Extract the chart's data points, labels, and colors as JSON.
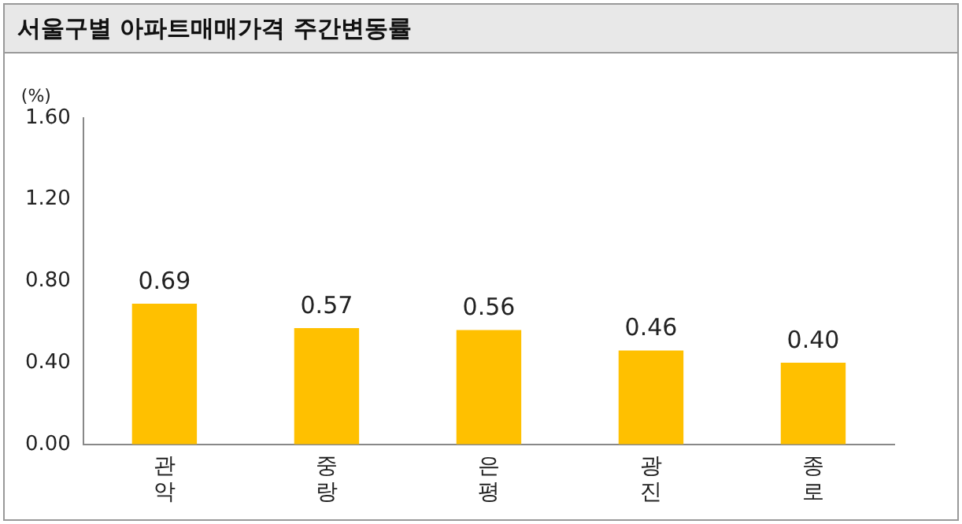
{
  "chart_data": {
    "type": "bar",
    "title": "서울구별 아파트매매가격 주간변동률",
    "ylabel": "(%)",
    "categories": [
      "관악",
      "중랑",
      "은평",
      "광진",
      "종로"
    ],
    "values": [
      0.69,
      0.57,
      0.56,
      0.46,
      0.4
    ],
    "value_labels": [
      "0.69",
      "0.57",
      "0.56",
      "0.46",
      "0.40"
    ],
    "color": "#ffc000",
    "ylim": [
      0,
      1.6
    ],
    "yticks": [
      {
        "value": 0,
        "label": "0.00"
      },
      {
        "value": 0.4,
        "label": "0.40"
      },
      {
        "value": 0.8,
        "label": "0.80"
      },
      {
        "value": 1.2,
        "label": "1.20"
      },
      {
        "value": 1.6,
        "label": "1.60"
      }
    ],
    "grid": false,
    "legend": false
  }
}
